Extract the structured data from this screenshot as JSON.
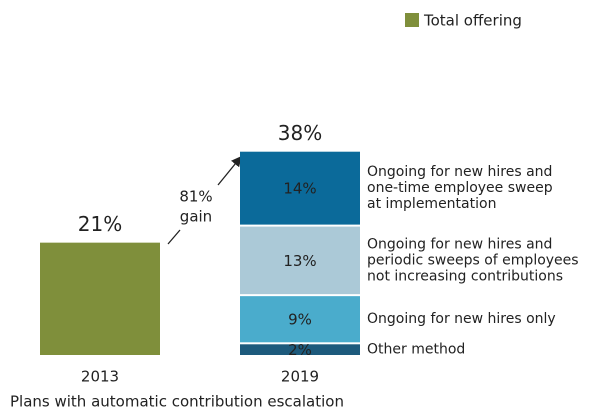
{
  "chart_data": {
    "type": "bar",
    "stacked": true,
    "x_label": "Plans with automatic contribution escalation",
    "categories": [
      "2013",
      "2019"
    ],
    "ylim": [
      0,
      40
    ],
    "series": [
      {
        "name": "Total offering",
        "color": "#7f8f3b",
        "values": [
          21,
          null
        ],
        "value_labels": [
          "21%",
          null
        ]
      },
      {
        "name": [
          "Other method"
        ],
        "color": "#1d5a7c",
        "text_color": "#ffffff",
        "values": [
          null,
          2
        ],
        "value_labels": [
          null,
          "2%"
        ]
      },
      {
        "name": [
          "Ongoing for new hires only"
        ],
        "color": "#4aaccc",
        "text_color": "#1a1a1a",
        "values": [
          null,
          9
        ],
        "value_labels": [
          null,
          "9%"
        ]
      },
      {
        "name": [
          "Ongoing for new hires and",
          "periodic sweeps of employees",
          "not increasing contributions"
        ],
        "color": "#abc9d7",
        "text_color": "#1a1a1a",
        "values": [
          null,
          13
        ],
        "value_labels": [
          null,
          "13%"
        ]
      },
      {
        "name": [
          "Ongoing for new hires and",
          "one-time employee sweep",
          "at implementation"
        ],
        "color": "#0b6a9a",
        "text_color": "#ffffff",
        "values": [
          null,
          14
        ],
        "value_labels": [
          null,
          "14%"
        ]
      }
    ],
    "totals": [
      null,
      38
    ],
    "total_labels": [
      null,
      "38%"
    ],
    "annotation": [
      "81%",
      "gain"
    ]
  }
}
